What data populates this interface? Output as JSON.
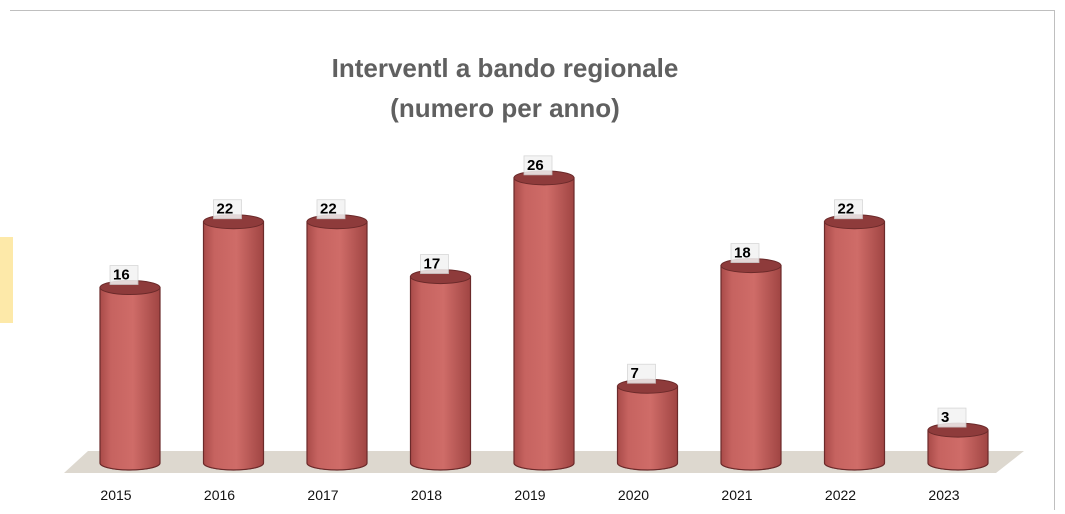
{
  "chart_data": {
    "type": "bar",
    "title": "Interventl a bando regionale",
    "subtitle": "(numero per anno)",
    "xlabel": "",
    "ylabel": "",
    "categories": [
      "2015",
      "2016",
      "2017",
      "2018",
      "2019",
      "2020",
      "2021",
      "2022",
      "2023"
    ],
    "series": [
      {
        "values": [
          16,
          22,
          22,
          17,
          26,
          7,
          18,
          22,
          3
        ]
      }
    ],
    "ylim": [
      0,
      30
    ],
    "grid": false,
    "legend": "none",
    "bar_style": "3d-cylinder",
    "colors": {
      "bar_fill": "#c66360",
      "bar_top": "#8e3b3b",
      "bar_edge": "#6b2a2a",
      "floor": "#ddd8cf",
      "title": "#606060",
      "side_accent": "#fde9a9"
    }
  }
}
